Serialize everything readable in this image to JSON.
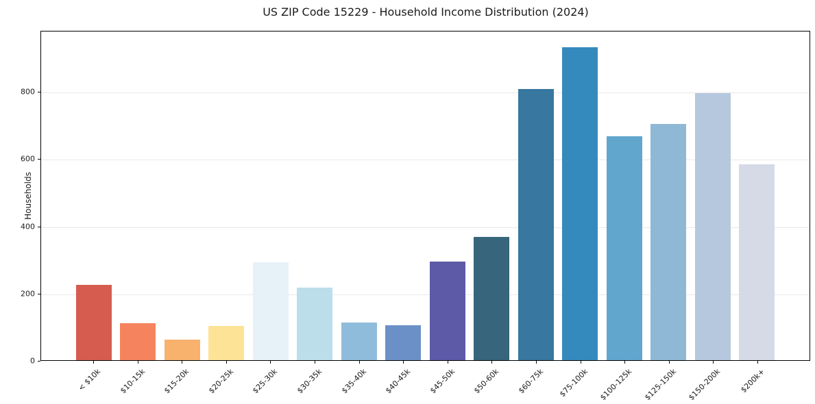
{
  "chart_data": {
    "type": "bar",
    "title": "US ZIP Code 15229 - Household Income Distribution (2024)",
    "ylabel": "Households",
    "xlabel": "",
    "categories": [
      "< $10k",
      "$10-15k",
      "$15-20k",
      "$20-25k",
      "$25-30k",
      "$30-35k",
      "$35-40k",
      "$40-45k",
      "$45-50k",
      "$50-60k",
      "$60-75k",
      "$75-100k",
      "$100-125k",
      "$125-150k",
      "$150-200k",
      "$200k+"
    ],
    "values": [
      225,
      110,
      62,
      103,
      292,
      216,
      113,
      105,
      295,
      368,
      810,
      935,
      668,
      706,
      798,
      586
    ],
    "bar_colors": [
      "#d65c50",
      "#f5845e",
      "#f9b16e",
      "#fde395",
      "#e7f1f8",
      "#bcdeea",
      "#90bcdc",
      "#6b90c7",
      "#5d5aa7",
      "#37657b",
      "#38779f",
      "#358abd",
      "#60a6cd",
      "#8fb8d6",
      "#b6c8de",
      "#d6d9e6"
    ],
    "yticks": [
      0,
      200,
      400,
      600,
      800
    ],
    "ylim": [
      0,
      982
    ],
    "grid": "horizontal",
    "grid_color": "#e8e8e8",
    "axis_color": "#000000",
    "text_color": "#1a1a1a",
    "legend": "none",
    "bar_slot_ratio": 0.8,
    "x_margin_slots": 1.19,
    "x_total_slots": 17.38
  }
}
